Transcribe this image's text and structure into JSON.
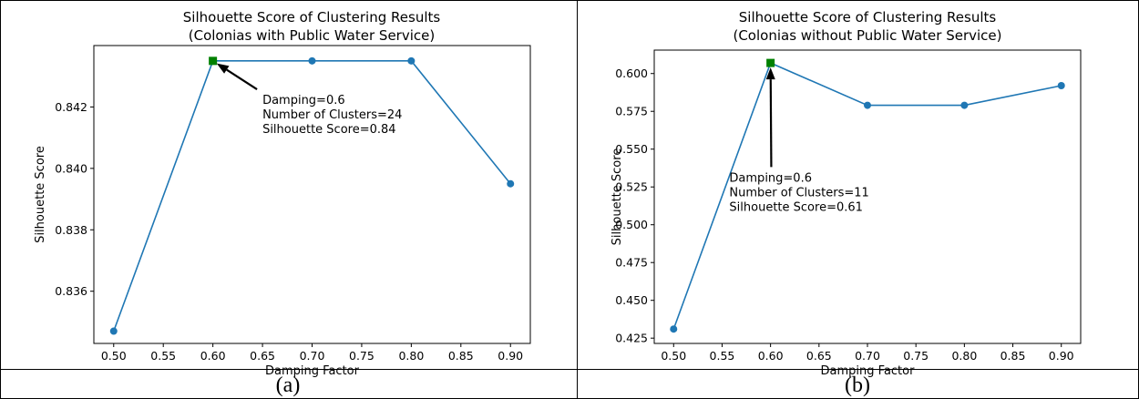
{
  "colors": {
    "line": "#1f77b4",
    "best": "#008000",
    "arrow": "#000000"
  },
  "captions": [
    "(a)",
    "(b)"
  ],
  "chart_data": [
    {
      "type": "line",
      "title": "Silhouette Score of Clustering Results",
      "subtitle": "(Colonias with Public Water Service)",
      "xlabel": "Damping Factor",
      "ylabel": "Silhouette Score",
      "x": [
        0.5,
        0.6,
        0.7,
        0.8,
        0.9
      ],
      "values": [
        0.8347,
        0.8435,
        0.8435,
        0.8435,
        0.8395
      ],
      "xlim": [
        0.48,
        0.92
      ],
      "ylim": [
        0.8343,
        0.844
      ],
      "xticks": [
        0.5,
        0.55,
        0.6,
        0.65,
        0.7,
        0.75,
        0.8,
        0.85,
        0.9
      ],
      "xticklabels": [
        "0.50",
        "0.55",
        "0.60",
        "0.65",
        "0.70",
        "0.75",
        "0.80",
        "0.85",
        "0.90"
      ],
      "yticks": [
        0.836,
        0.838,
        0.84,
        0.842
      ],
      "yticklabels": [
        "0.836",
        "0.838",
        "0.840",
        "0.842"
      ],
      "highlight": {
        "x": 0.6,
        "y": 0.8435,
        "marker": "square"
      },
      "annotation": {
        "lines": [
          "Damping=0.6",
          "Number of Clusters=24",
          "Silhouette Score=0.84"
        ],
        "text_x": 0.65,
        "text_y": 0.8421
      },
      "grid": false
    },
    {
      "type": "line",
      "title": "Silhouette Score of Clustering Results",
      "subtitle": "(Colonias without Public Water Service)",
      "xlabel": "Damping Factor",
      "ylabel": "Silhouette Score",
      "x": [
        0.5,
        0.6,
        0.7,
        0.8,
        0.9
      ],
      "values": [
        0.431,
        0.607,
        0.579,
        0.579,
        0.592
      ],
      "xlim": [
        0.48,
        0.92
      ],
      "ylim": [
        0.4215,
        0.6155
      ],
      "xticks": [
        0.5,
        0.55,
        0.6,
        0.65,
        0.7,
        0.75,
        0.8,
        0.85,
        0.9
      ],
      "xticklabels": [
        "0.50",
        "0.55",
        "0.60",
        "0.65",
        "0.70",
        "0.75",
        "0.80",
        "0.85",
        "0.90"
      ],
      "yticks": [
        0.425,
        0.45,
        0.475,
        0.5,
        0.525,
        0.55,
        0.575,
        0.6
      ],
      "yticklabels": [
        "0.425",
        "0.450",
        "0.475",
        "0.500",
        "0.525",
        "0.550",
        "0.575",
        "0.600"
      ],
      "highlight": {
        "x": 0.6,
        "y": 0.607,
        "marker": "square"
      },
      "annotation": {
        "lines": [
          "Damping=0.6",
          "Number of Clusters=11",
          "Silhouette Score=0.61"
        ],
        "text_x": 0.5575,
        "text_y": 0.5285
      },
      "grid": false
    }
  ]
}
